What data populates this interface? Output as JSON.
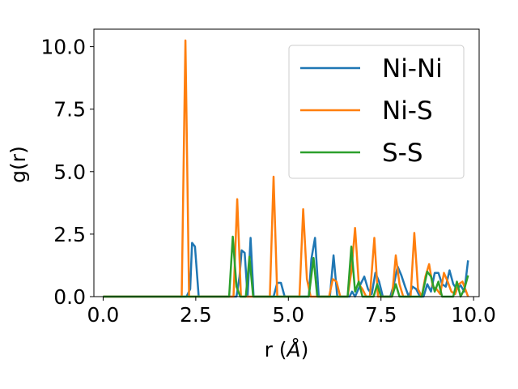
{
  "chart_data": {
    "type": "line",
    "xlabel_main": "r (",
    "xlabel_unit": "Å",
    "xlabel_close": ")",
    "ylabel": "g(r)",
    "xlim": [
      -0.25,
      10.15
    ],
    "ylim": [
      0,
      10.7
    ],
    "xticks": [
      0.0,
      2.5,
      5.0,
      7.5,
      10.0
    ],
    "xtick_labels": [
      "0.0",
      "2.5",
      "5.0",
      "7.5",
      "10.0"
    ],
    "yticks": [
      0.0,
      2.5,
      5.0,
      7.5,
      10.0
    ],
    "ytick_labels": [
      "0.0",
      "2.5",
      "5.0",
      "7.5",
      "10.0"
    ],
    "grid": false,
    "legend_position": "top-right",
    "series": [
      {
        "name": "Ni-Ni",
        "color": "#1f77b4",
        "points": [
          [
            0.0,
            0
          ],
          [
            2.25,
            0
          ],
          [
            2.35,
            0.3
          ],
          [
            2.4,
            2.15
          ],
          [
            2.48,
            2.0
          ],
          [
            2.58,
            0
          ],
          [
            3.6,
            0
          ],
          [
            3.68,
            0.8
          ],
          [
            3.74,
            1.85
          ],
          [
            3.82,
            1.75
          ],
          [
            3.9,
            0
          ],
          [
            3.98,
            2.35
          ],
          [
            4.06,
            0
          ],
          [
            4.6,
            0
          ],
          [
            4.7,
            0.55
          ],
          [
            4.8,
            0.55
          ],
          [
            4.9,
            0
          ],
          [
            5.55,
            0
          ],
          [
            5.62,
            1.5
          ],
          [
            5.72,
            2.35
          ],
          [
            5.82,
            0
          ],
          [
            6.12,
            0
          ],
          [
            6.22,
            1.65
          ],
          [
            6.32,
            0
          ],
          [
            6.65,
            0
          ],
          [
            6.72,
            0.2
          ],
          [
            6.8,
            0
          ],
          [
            6.95,
            0.5
          ],
          [
            7.05,
            0.8
          ],
          [
            7.15,
            0.3
          ],
          [
            7.25,
            0.1
          ],
          [
            7.35,
            0.95
          ],
          [
            7.45,
            0.6
          ],
          [
            7.55,
            0
          ],
          [
            7.75,
            0
          ],
          [
            7.85,
            0.5
          ],
          [
            7.95,
            1.2
          ],
          [
            8.05,
            0.85
          ],
          [
            8.15,
            0.4
          ],
          [
            8.25,
            0
          ],
          [
            8.35,
            0.4
          ],
          [
            8.45,
            0.3
          ],
          [
            8.55,
            0
          ],
          [
            8.65,
            0
          ],
          [
            8.75,
            0.5
          ],
          [
            8.85,
            0.2
          ],
          [
            8.95,
            0.95
          ],
          [
            9.05,
            0.95
          ],
          [
            9.15,
            0.5
          ],
          [
            9.25,
            0.4
          ],
          [
            9.35,
            1.05
          ],
          [
            9.45,
            0.5
          ],
          [
            9.55,
            0.3
          ],
          [
            9.65,
            0.45
          ],
          [
            9.75,
            0.2
          ],
          [
            9.85,
            1.45
          ]
        ]
      },
      {
        "name": "Ni-S",
        "color": "#ff7f0e",
        "points": [
          [
            0.0,
            0
          ],
          [
            2.12,
            0
          ],
          [
            2.22,
            10.25
          ],
          [
            2.32,
            0
          ],
          [
            3.52,
            0
          ],
          [
            3.62,
            3.9
          ],
          [
            3.72,
            0
          ],
          [
            4.5,
            0
          ],
          [
            4.6,
            4.8
          ],
          [
            4.7,
            0
          ],
          [
            5.3,
            0
          ],
          [
            5.4,
            3.5
          ],
          [
            5.5,
            0.7
          ],
          [
            5.6,
            0
          ],
          [
            6.1,
            0
          ],
          [
            6.2,
            0.7
          ],
          [
            6.3,
            0.6
          ],
          [
            6.4,
            0
          ],
          [
            6.6,
            0
          ],
          [
            6.7,
            1.0
          ],
          [
            6.8,
            2.75
          ],
          [
            6.9,
            0.5
          ],
          [
            7.0,
            0.3
          ],
          [
            7.1,
            0
          ],
          [
            7.2,
            0
          ],
          [
            7.32,
            2.35
          ],
          [
            7.42,
            0
          ],
          [
            7.8,
            0
          ],
          [
            7.9,
            1.65
          ],
          [
            8.0,
            0.5
          ],
          [
            8.1,
            0
          ],
          [
            8.3,
            0
          ],
          [
            8.4,
            2.55
          ],
          [
            8.5,
            0.3
          ],
          [
            8.6,
            0
          ],
          [
            8.7,
            0.8
          ],
          [
            8.8,
            1.3
          ],
          [
            8.9,
            0.4
          ],
          [
            9.0,
            0.3
          ],
          [
            9.1,
            0.1
          ],
          [
            9.2,
            0.95
          ],
          [
            9.3,
            0.6
          ],
          [
            9.4,
            0.2
          ],
          [
            9.5,
            0.1
          ],
          [
            9.6,
            0.5
          ],
          [
            9.7,
            0.6
          ],
          [
            9.8,
            0.2
          ],
          [
            9.85,
            0
          ]
        ]
      },
      {
        "name": "S-S",
        "color": "#2ca02c",
        "points": [
          [
            0.0,
            0
          ],
          [
            3.4,
            0
          ],
          [
            3.5,
            2.4
          ],
          [
            3.6,
            0.4
          ],
          [
            3.7,
            0
          ],
          [
            3.85,
            0
          ],
          [
            3.95,
            1.6
          ],
          [
            4.05,
            0
          ],
          [
            5.55,
            0
          ],
          [
            5.68,
            1.55
          ],
          [
            5.78,
            0
          ],
          [
            6.6,
            0
          ],
          [
            6.7,
            2.0
          ],
          [
            6.8,
            0.2
          ],
          [
            6.9,
            0.6
          ],
          [
            7.0,
            0
          ],
          [
            7.3,
            0
          ],
          [
            7.4,
            0.5
          ],
          [
            7.5,
            0
          ],
          [
            7.8,
            0
          ],
          [
            7.9,
            0.5
          ],
          [
            8.0,
            0
          ],
          [
            8.6,
            0
          ],
          [
            8.75,
            1.0
          ],
          [
            8.85,
            0.8
          ],
          [
            8.95,
            0.2
          ],
          [
            9.05,
            0.6
          ],
          [
            9.15,
            0
          ],
          [
            9.45,
            0
          ],
          [
            9.55,
            0.6
          ],
          [
            9.65,
            0
          ],
          [
            9.75,
            0.3
          ],
          [
            9.85,
            0.85
          ]
        ]
      }
    ]
  }
}
